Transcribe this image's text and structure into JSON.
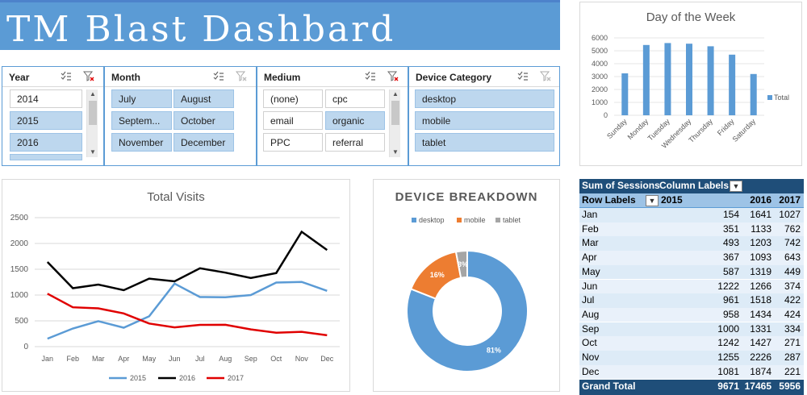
{
  "dashboard": {
    "title": "TM Blast Dashbard"
  },
  "slicers": {
    "year": {
      "title": "Year",
      "items": [
        "2014",
        "2015",
        "2016"
      ]
    },
    "month": {
      "title": "Month",
      "items": [
        "July",
        "August",
        "Septem...",
        "October",
        "November",
        "December"
      ]
    },
    "medium": {
      "title": "Medium",
      "items": [
        "(none)",
        "cpc",
        "email",
        "organic",
        "PPC",
        "referral"
      ]
    },
    "device": {
      "title": "Device Category",
      "items": [
        "desktop",
        "mobile",
        "tablet"
      ]
    }
  },
  "icons": {
    "multi_select": "multi-select-icon",
    "clear_filter": "clear-filter-icon",
    "filter": "filter-icon"
  },
  "colors": {
    "accent": "#5b9bd5",
    "black": "#000000",
    "red": "#e00000",
    "orange": "#ed7d31",
    "gray": "#a5a5a5",
    "dark_blue": "#1f4e79"
  },
  "charts": {
    "day_of_week": {
      "chart_data": {
        "type": "bar",
        "title": "Day of the Week",
        "categories": [
          "Sunday",
          "Monday",
          "Tuesday",
          "Wednesday",
          "Thursday",
          "Friday",
          "Saturday"
        ],
        "series": [
          {
            "name": "Total",
            "values": [
              3250,
              5450,
              5600,
              5550,
              5350,
              4700,
              3200
            ]
          }
        ],
        "ylim": [
          0,
          6000
        ],
        "yticks": [
          "0",
          "1000",
          "2000",
          "3000",
          "4000",
          "5000",
          "6000"
        ],
        "legend": "right"
      }
    },
    "total_visits": {
      "chart_data": {
        "type": "line",
        "title": "Total Visits",
        "categories": [
          "Jan",
          "Feb",
          "Mar",
          "Apr",
          "May",
          "Jun",
          "Jul",
          "Aug",
          "Sep",
          "Oct",
          "Nov",
          "Dec"
        ],
        "series": [
          {
            "name": "2015",
            "values": [
              154,
              351,
              493,
              367,
              587,
              1222,
              961,
              958,
              1000,
              1242,
              1255,
              1081
            ]
          },
          {
            "name": "2016",
            "values": [
              1641,
              1133,
              1203,
              1093,
              1319,
              1266,
              1518,
              1434,
              1331,
              1427,
              2226,
              1874
            ]
          },
          {
            "name": "2017",
            "values": [
              1027,
              762,
              742,
              643,
              449,
              374,
              422,
              424,
              334,
              271,
              287,
              221
            ]
          }
        ],
        "ylim": [
          0,
          2500
        ],
        "yticks": [
          "0",
          "500",
          "1000",
          "1500",
          "2000",
          "2500"
        ],
        "legend": "bottom"
      }
    },
    "device_breakdown": {
      "chart_data": {
        "type": "pie",
        "title": "DEVICE BREAKDOWN",
        "categories": [
          "desktop",
          "mobile",
          "tablet"
        ],
        "values": [
          81,
          16,
          3
        ],
        "labels": [
          "81%",
          "16%",
          "3%"
        ],
        "legend": "top"
      }
    }
  },
  "pivot": {
    "header": {
      "measure": "Sum of Sessions",
      "column_labels": "Column Labels"
    },
    "subheader": {
      "row_labels": "Row Labels",
      "y2015": "2015",
      "y2016": "2016",
      "y2017": "2017"
    },
    "rows": [
      {
        "label": "Jan",
        "v2015": "154",
        "v2016": "1641",
        "v2017": "1027"
      },
      {
        "label": "Feb",
        "v2015": "351",
        "v2016": "1133",
        "v2017": "762"
      },
      {
        "label": "Mar",
        "v2015": "493",
        "v2016": "1203",
        "v2017": "742"
      },
      {
        "label": "Apr",
        "v2015": "367",
        "v2016": "1093",
        "v2017": "643"
      },
      {
        "label": "May",
        "v2015": "587",
        "v2016": "1319",
        "v2017": "449"
      },
      {
        "label": "Jun",
        "v2015": "1222",
        "v2016": "1266",
        "v2017": "374"
      },
      {
        "label": "Jul",
        "v2015": "961",
        "v2016": "1518",
        "v2017": "422"
      },
      {
        "label": "Aug",
        "v2015": "958",
        "v2016": "1434",
        "v2017": "424"
      },
      {
        "label": "Sep",
        "v2015": "1000",
        "v2016": "1331",
        "v2017": "334"
      },
      {
        "label": "Oct",
        "v2015": "1242",
        "v2016": "1427",
        "v2017": "271"
      },
      {
        "label": "Nov",
        "v2015": "1255",
        "v2016": "2226",
        "v2017": "287"
      },
      {
        "label": "Dec",
        "v2015": "1081",
        "v2016": "1874",
        "v2017": "221"
      }
    ],
    "total": {
      "label": "Grand Total",
      "v2015": "9671",
      "v2016": "17465",
      "v2017": "5956"
    }
  }
}
